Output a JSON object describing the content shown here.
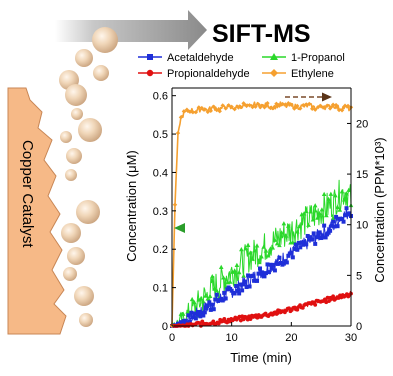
{
  "header": {
    "title": "SIFT-MS",
    "catalyst_label": "Copper Catalyst"
  },
  "colors": {
    "acetaldehyde": "#1f2fd8",
    "propionaldehyde": "#e01010",
    "propanol": "#2ad82a",
    "ethylene": "#f5a030",
    "catalyst": "#f4b68a",
    "arrow": "#9a9a9a"
  },
  "chart_data": {
    "type": "line",
    "title": "",
    "xlabel": "Time (min)",
    "ylabel": "Concentration (μM)",
    "ylabel_right": "Concentration (PPM*10³)",
    "xlim": [
      0,
      30
    ],
    "ylim": [
      0,
      0.62
    ],
    "ylim_right": [
      0,
      23.5
    ],
    "x_ticks": [
      "0",
      "10",
      "20",
      "30"
    ],
    "y_ticks": [
      "0",
      "0.1",
      "0.2",
      "0.3",
      "0.4",
      "0.5",
      "0.6"
    ],
    "y_ticks_right": [
      "0",
      "5",
      "10",
      "15",
      "20"
    ],
    "legend_position": "top",
    "series": [
      {
        "name": "Acetaldehyde",
        "axis": "left",
        "marker": "square",
        "x": [
          0,
          1,
          2,
          3,
          4,
          5,
          6,
          7,
          8,
          9,
          10,
          11,
          12,
          13,
          14,
          15,
          16,
          17,
          18,
          19,
          20,
          21,
          22,
          23,
          24,
          25,
          26,
          27,
          28,
          29,
          30
        ],
        "y": [
          0.0,
          0.005,
          0.01,
          0.02,
          0.03,
          0.04,
          0.05,
          0.06,
          0.07,
          0.08,
          0.09,
          0.1,
          0.11,
          0.12,
          0.13,
          0.14,
          0.15,
          0.16,
          0.17,
          0.18,
          0.19,
          0.2,
          0.21,
          0.22,
          0.23,
          0.24,
          0.25,
          0.26,
          0.28,
          0.29,
          0.3
        ]
      },
      {
        "name": "1-Propanol",
        "axis": "left",
        "marker": "triangle",
        "x": [
          0,
          1,
          2,
          3,
          4,
          5,
          6,
          7,
          8,
          9,
          10,
          11,
          12,
          13,
          14,
          15,
          16,
          17,
          18,
          19,
          20,
          21,
          22,
          23,
          24,
          25,
          26,
          27,
          28,
          29,
          30
        ],
        "y": [
          0.0,
          0.01,
          0.02,
          0.04,
          0.05,
          0.07,
          0.08,
          0.1,
          0.11,
          0.13,
          0.14,
          0.15,
          0.17,
          0.18,
          0.19,
          0.2,
          0.21,
          0.22,
          0.23,
          0.24,
          0.25,
          0.26,
          0.27,
          0.28,
          0.29,
          0.3,
          0.31,
          0.32,
          0.34,
          0.35,
          0.33
        ]
      },
      {
        "name": "Propionaldehyde",
        "axis": "left",
        "marker": "circle",
        "x": [
          0,
          1,
          2,
          3,
          4,
          5,
          6,
          7,
          8,
          9,
          10,
          11,
          12,
          13,
          14,
          15,
          16,
          17,
          18,
          19,
          20,
          21,
          22,
          23,
          24,
          25,
          26,
          27,
          28,
          29,
          30
        ],
        "y": [
          0.0,
          0.0,
          0.0,
          0.002,
          0.004,
          0.006,
          0.008,
          0.01,
          0.012,
          0.014,
          0.016,
          0.018,
          0.02,
          0.022,
          0.025,
          0.028,
          0.03,
          0.033,
          0.036,
          0.04,
          0.044,
          0.048,
          0.052,
          0.056,
          0.06,
          0.064,
          0.068,
          0.072,
          0.076,
          0.08,
          0.085
        ]
      },
      {
        "name": "Ethylene",
        "axis": "right",
        "marker": "diamond",
        "x": [
          0,
          0.5,
          1,
          1.5,
          2,
          3,
          4,
          5,
          6,
          7,
          8,
          9,
          10,
          11,
          12,
          13,
          14,
          15,
          16,
          17,
          18,
          19,
          20,
          21,
          22,
          23,
          24,
          25,
          26,
          27,
          28,
          29,
          30
        ],
        "y": [
          0,
          12,
          19,
          20.5,
          21,
          21.3,
          21.2,
          21.5,
          21.3,
          21.6,
          21.4,
          21.7,
          21.5,
          21.6,
          21.8,
          21.6,
          21.9,
          21.7,
          21.8,
          21.6,
          21.9,
          21.7,
          21.8,
          21.6,
          21.7,
          21.8,
          21.5,
          21.7,
          21.6,
          21.8,
          21.5,
          21.6,
          21.4
        ]
      }
    ]
  }
}
